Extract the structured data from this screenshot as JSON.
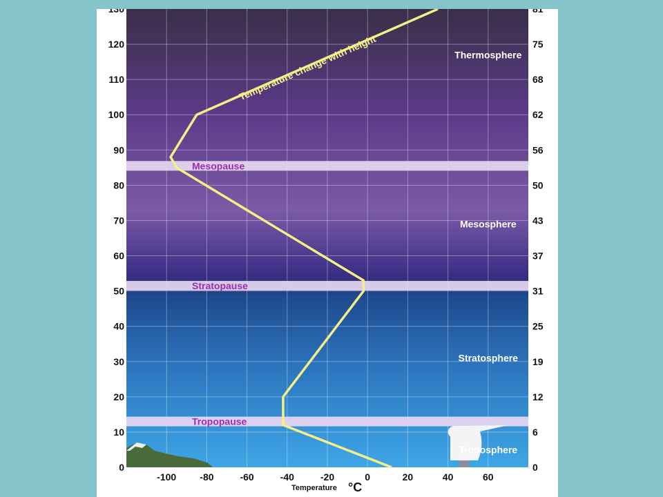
{
  "chart_data": {
    "type": "line",
    "title": "",
    "xlabel": "Temperature",
    "xlabel_unit": "°C",
    "xlim": [
      -120,
      80
    ],
    "ylim": [
      0,
      130
    ],
    "x_ticks": [
      -100,
      -80,
      -60,
      -40,
      -20,
      0,
      20,
      40,
      60
    ],
    "y_ticks_left": [
      0,
      10,
      20,
      30,
      40,
      50,
      60,
      70,
      80,
      90,
      100,
      110,
      120,
      130
    ],
    "y_ticks_right_labels": [
      "0",
      "6",
      "12",
      "19",
      "25",
      "31",
      "37",
      "43",
      "50",
      "56",
      "62",
      "68",
      "75",
      "81"
    ],
    "grid": true,
    "series": [
      {
        "name": "Temperature change with height",
        "x": [
          12,
          -42,
          -42,
          -2,
          -2,
          -95,
          -98,
          -85,
          35
        ],
        "y": [
          0,
          12,
          20,
          50,
          53,
          85,
          88,
          100,
          130
        ]
      }
    ],
    "layers": [
      {
        "label": "Troposphere",
        "temp": 60,
        "height": 5
      },
      {
        "label": "Stratosphere",
        "temp": 60,
        "height": 31
      },
      {
        "label": "Mesosphere",
        "temp": 60,
        "height": 69
      },
      {
        "label": "Thermosphere",
        "temp": 60,
        "height": 117
      }
    ],
    "pauses": [
      {
        "label": "Tropopause",
        "height": 13
      },
      {
        "label": "Stratopause",
        "height": 51.5
      },
      {
        "label": "Mesopause",
        "height": 85.5
      }
    ],
    "colors": {
      "curve": "#f5ef8a",
      "pause_band": "#e6d8f2",
      "pause_text": "#9b2fb3",
      "layer_text": "#ffffff"
    }
  }
}
